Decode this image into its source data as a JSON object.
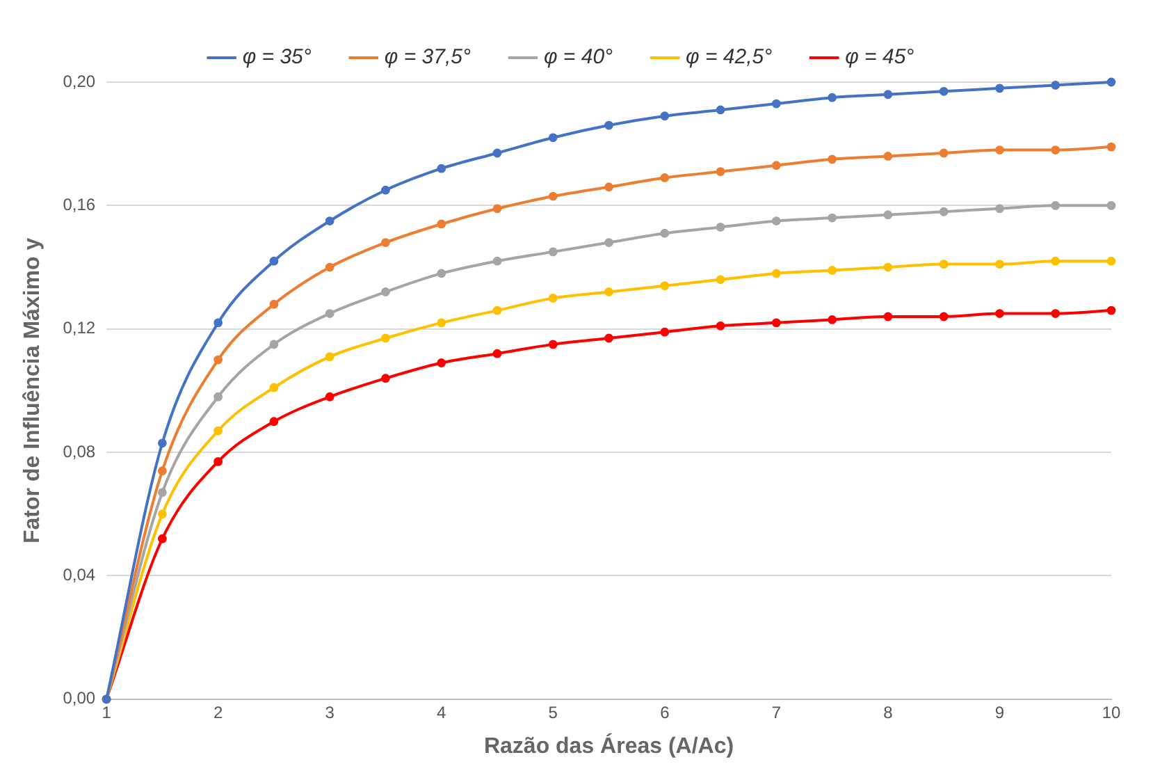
{
  "chart_data": {
    "type": "line",
    "xlabel": "Razão das Áreas (A/Ac)",
    "ylabel": "Fator de Influência Máximo y",
    "x": [
      1,
      1.5,
      2,
      2.5,
      3,
      3.5,
      4,
      4.5,
      5,
      5.5,
      6,
      6.5,
      7,
      7.5,
      8,
      8.5,
      9,
      9.5,
      10
    ],
    "series": [
      {
        "name": "φ = 35°",
        "color": "#4472c4",
        "values": [
          0,
          0.083,
          0.122,
          0.142,
          0.155,
          0.165,
          0.172,
          0.177,
          0.182,
          0.186,
          0.189,
          0.191,
          0.193,
          0.195,
          0.196,
          0.197,
          0.198,
          0.199,
          0.2
        ]
      },
      {
        "name": "φ = 37,5°",
        "color": "#ed7d31",
        "values": [
          0,
          0.074,
          0.11,
          0.128,
          0.14,
          0.148,
          0.154,
          0.159,
          0.163,
          0.166,
          0.169,
          0.171,
          0.173,
          0.175,
          0.176,
          0.177,
          0.178,
          0.178,
          0.179
        ]
      },
      {
        "name": "φ = 40°",
        "color": "#a5a5a5",
        "values": [
          0,
          0.067,
          0.098,
          0.115,
          0.125,
          0.132,
          0.138,
          0.142,
          0.145,
          0.148,
          0.151,
          0.153,
          0.155,
          0.156,
          0.157,
          0.158,
          0.159,
          0.16,
          0.16
        ]
      },
      {
        "name": "φ = 42,5°",
        "color": "#ffc000",
        "values": [
          0,
          0.06,
          0.087,
          0.101,
          0.111,
          0.117,
          0.122,
          0.126,
          0.13,
          0.132,
          0.134,
          0.136,
          0.138,
          0.139,
          0.14,
          0.141,
          0.141,
          0.142,
          0.142
        ]
      },
      {
        "name": "φ = 45°",
        "color": "#ff0000",
        "values": [
          0,
          0.052,
          0.077,
          0.09,
          0.098,
          0.104,
          0.109,
          0.112,
          0.115,
          0.117,
          0.119,
          0.121,
          0.122,
          0.123,
          0.124,
          0.124,
          0.125,
          0.125,
          0.126
        ]
      }
    ],
    "xlim": [
      1,
      10
    ],
    "xticks": [
      1,
      2,
      3,
      4,
      5,
      6,
      7,
      8,
      9,
      10
    ],
    "ylim": [
      0,
      0.2
    ],
    "yticks": [
      {
        "value": 0,
        "label": "0,00"
      },
      {
        "value": 0.04,
        "label": "0,04"
      },
      {
        "value": 0.08,
        "label": "0,08"
      },
      {
        "value": 0.12,
        "label": "0,12"
      },
      {
        "value": 0.16,
        "label": "0,16"
      },
      {
        "value": 0.2,
        "label": "0,20"
      }
    ],
    "grid": "y",
    "legend": "top",
    "marker": "circle",
    "line_style": "solid"
  }
}
